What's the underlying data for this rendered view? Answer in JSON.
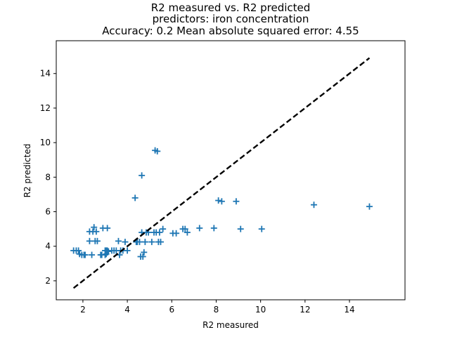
{
  "chart_data": {
    "type": "scatter",
    "title_lines": [
      "R2 measured vs. R2 predicted",
      "predictors: iron concentration",
      "Accuracy: 0.2 Mean absolute squared error: 4.55"
    ],
    "xlabel": "R2 measured",
    "ylabel": "R2 predicted",
    "xlim": [
      0.8,
      16.5
    ],
    "ylim": [
      0.9,
      15.9
    ],
    "xticks": [
      2,
      4,
      6,
      8,
      10,
      12,
      14
    ],
    "yticks": [
      2,
      4,
      6,
      8,
      10,
      12,
      14
    ],
    "grid": false,
    "marker": "+",
    "point_color": "#1f77b4",
    "reference_line": {
      "style": "dashed",
      "color": "#000000",
      "x": [
        1.58,
        14.9
      ],
      "y": [
        1.58,
        14.9
      ]
    },
    "series": [
      {
        "x": [
          1.58,
          1.7,
          1.8,
          1.85,
          1.95,
          2.05,
          2.1,
          2.3,
          2.3,
          2.4,
          2.45,
          2.5,
          2.55,
          2.6,
          2.65,
          2.8,
          2.85,
          2.9,
          3.0,
          3.0,
          3.05,
          3.05,
          3.1,
          3.1,
          3.15,
          3.3,
          3.4,
          3.5,
          3.6,
          3.65,
          3.7,
          3.8,
          3.9,
          4.0,
          4.35,
          4.4,
          4.45,
          4.55,
          4.6,
          4.65,
          4.65,
          4.7,
          4.75,
          4.8,
          4.85,
          4.95,
          5.1,
          5.2,
          5.25,
          5.3,
          5.35,
          5.4,
          5.45,
          5.5,
          5.6,
          6.05,
          6.2,
          6.5,
          6.6,
          6.7,
          7.25,
          7.9,
          8.1,
          8.25,
          8.9,
          9.1,
          10.05,
          12.4,
          14.9
        ],
        "y": [
          3.75,
          3.75,
          3.75,
          3.55,
          3.5,
          3.5,
          3.5,
          4.3,
          4.85,
          3.5,
          4.85,
          5.1,
          4.3,
          4.85,
          4.3,
          3.5,
          3.5,
          5.05,
          3.5,
          3.75,
          3.55,
          3.75,
          5.05,
          3.75,
          3.7,
          3.75,
          3.75,
          3.75,
          4.3,
          3.5,
          3.75,
          3.75,
          4.25,
          3.75,
          6.8,
          4.25,
          4.25,
          4.25,
          3.4,
          8.1,
          4.8,
          3.4,
          3.65,
          4.25,
          4.8,
          4.8,
          4.25,
          4.8,
          9.55,
          4.8,
          9.5,
          4.25,
          4.8,
          4.25,
          5.0,
          4.75,
          4.75,
          5.0,
          5.0,
          4.8,
          5.05,
          5.05,
          6.65,
          6.6,
          6.6,
          5.0,
          5.0,
          6.4,
          6.3
        ]
      }
    ]
  }
}
